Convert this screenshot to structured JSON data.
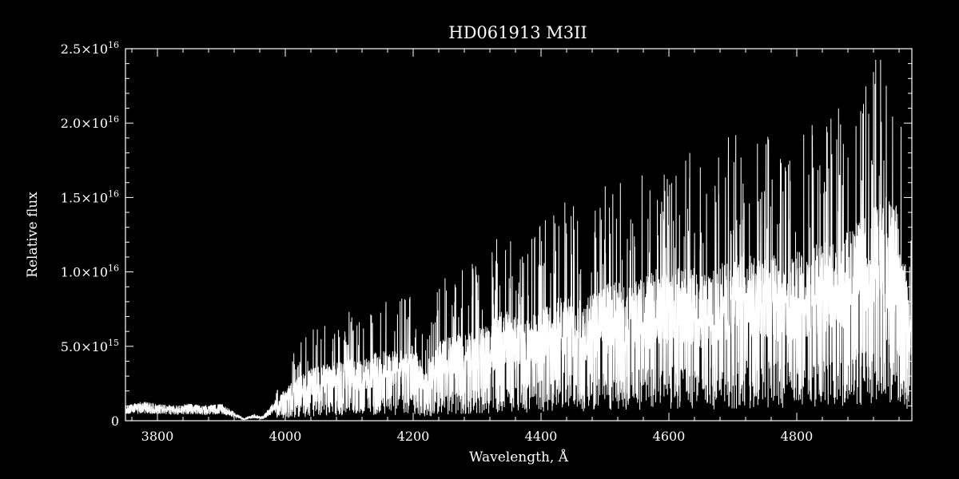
{
  "chart_data": {
    "type": "line",
    "title": "HD061913   M3II",
    "xlabel": "Wavelength, Å",
    "ylabel": "Relative flux",
    "xlim": [
      3750,
      4980
    ],
    "ylim": [
      0,
      2.5e+16
    ],
    "grid": false,
    "background": "#000000",
    "line_color": "#ffffff",
    "x_ticks": [
      {
        "value": 3800,
        "label": "3800"
      },
      {
        "value": 4000,
        "label": "4000"
      },
      {
        "value": 4200,
        "label": "4200"
      },
      {
        "value": 4400,
        "label": "4400"
      },
      {
        "value": 4600,
        "label": "4600"
      },
      {
        "value": 4800,
        "label": "4800"
      }
    ],
    "y_ticks": [
      {
        "value": 0,
        "mant": "0",
        "exp": ""
      },
      {
        "value": 5000000000000000.0,
        "mant": "5.0×10",
        "exp": "15"
      },
      {
        "value": 1e+16,
        "mant": "1.0×10",
        "exp": "16"
      },
      {
        "value": 1.5e+16,
        "mant": "1.5×10",
        "exp": "16"
      },
      {
        "value": 2e+16,
        "mant": "2.0×10",
        "exp": "16"
      },
      {
        "value": 2.5e+16,
        "mant": "2.5×10",
        "exp": "16"
      }
    ],
    "series": [
      {
        "x": [
          3750,
          3775,
          3800,
          3825,
          3850,
          3875,
          3900,
          3920,
          3935,
          3950,
          3965,
          3980,
          4000,
          4020,
          4040,
          4060,
          4080,
          4100,
          4120,
          4140,
          4160,
          4180,
          4200,
          4220,
          4240,
          4260,
          4280,
          4300,
          4320,
          4340,
          4360,
          4380,
          4400,
          4420,
          4440,
          4460,
          4480,
          4500,
          4520,
          4540,
          4560,
          4580,
          4600,
          4620,
          4640,
          4660,
          4680,
          4700,
          4720,
          4740,
          4760,
          4780,
          4800,
          4820,
          4840,
          4860,
          4880,
          4900,
          4920,
          4940,
          4955,
          4965,
          4980
        ],
        "y": [
          700000000000000.0,
          900000000000000.0,
          800000000000000.0,
          700000000000000.0,
          800000000000000.0,
          700000000000000.0,
          800000000000000.0,
          400000000000000.0,
          100000000000000.0,
          300000000000000.0,
          200000000000000.0,
          800000000000000.0,
          1600000000000000.0,
          2200000000000000.0,
          2600000000000000.0,
          2800000000000000.0,
          3000000000000000.0,
          3200000000000000.0,
          3000000000000000.0,
          3400000000000000.0,
          3600000000000000.0,
          3500000000000000.0,
          3800000000000000.0,
          2400000000000000.0,
          4000000000000000.0,
          4200000000000000.0,
          4400000000000000.0,
          4600000000000000.0,
          4800000000000000.0,
          5600000000000000.0,
          5200000000000000.0,
          5000000000000000.0,
          5800000000000000.0,
          6200000000000000.0,
          6600000000000000.0,
          6000000000000000.0,
          6400000000000000.0,
          6800000000000000.0,
          7000000000000000.0,
          6800000000000000.0,
          7200000000000000.0,
          7600000000000000.0,
          7400000000000000.0,
          8000000000000000.0,
          7600000000000000.0,
          7200000000000000.0,
          8000000000000000.0,
          8200000000000000.0,
          8400000000000000.0,
          8000000000000000.0,
          8600000000000000.0,
          7600000000000000.0,
          8400000000000000.0,
          8600000000000000.0,
          9000000000000000.0,
          8800000000000000.0,
          9600000000000000.0,
          1e+16,
          1.06e+16,
          1.12e+16,
          1.1e+16,
          9000000000000000.0,
          6000000000000000.0
        ]
      }
    ]
  }
}
